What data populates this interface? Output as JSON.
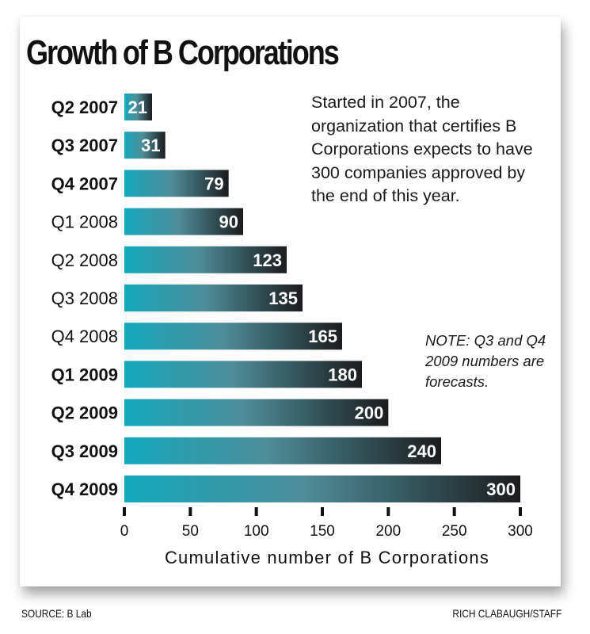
{
  "title": "Growth of B Corporations",
  "intro_text": "Started in 2007, the organization that certifies B Corporations expects to have 300 companies approved by the end of this year.",
  "note_text": "NOTE: Q3 and Q4 2009 numbers are forecasts.",
  "source": "SOURCE: B Lab",
  "credit": "RICH CLABAUGH/STAFF",
  "colors": {
    "bar_start": "#14a8bd",
    "bar_mid": "#4f8e99",
    "bar_end": "#1c1c1e",
    "text": "#111111",
    "bar_label": "#ffffff"
  },
  "chart_data": {
    "type": "bar",
    "orientation": "horizontal",
    "title": "Growth of B Corporations",
    "xlabel": "Cumulative number of B Corporations",
    "ylabel": "",
    "xlim": [
      0,
      300
    ],
    "xticks": [
      0,
      50,
      100,
      150,
      200,
      250,
      300
    ],
    "grid": false,
    "categories": [
      "Q2 2007",
      "Q3 2007",
      "Q4 2007",
      "Q1 2008",
      "Q2 2008",
      "Q3 2008",
      "Q4 2008",
      "Q1 2009",
      "Q2 2009",
      "Q3 2009",
      "Q4 2009"
    ],
    "bold_categories": [
      "Q2 2007",
      "Q3 2007",
      "Q4 2007",
      "Q1 2009",
      "Q2 2009",
      "Q3 2009",
      "Q4 2009"
    ],
    "values": [
      21,
      31,
      79,
      90,
      123,
      135,
      165,
      180,
      200,
      240,
      300
    ],
    "forecast": [
      "Q3 2009",
      "Q4 2009"
    ]
  }
}
